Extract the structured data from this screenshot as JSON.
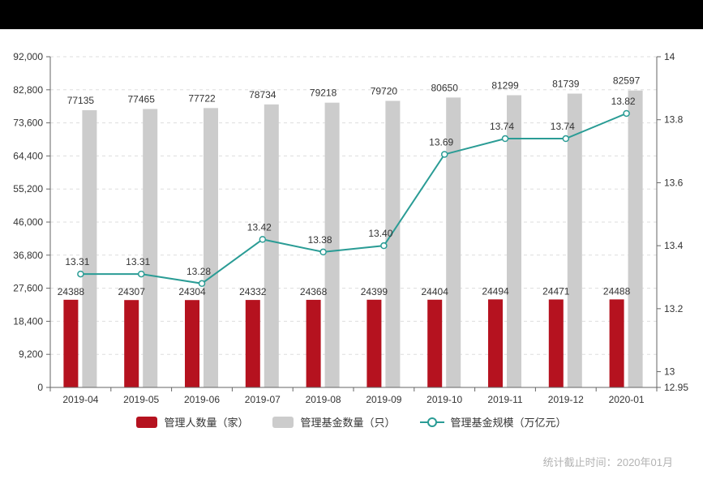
{
  "top_bar": {},
  "chart_data": {
    "type": "bar",
    "subtype": "bar-line-combo",
    "categories": [
      "2019-04",
      "2019-05",
      "2019-06",
      "2019-07",
      "2019-08",
      "2019-09",
      "2019-10",
      "2019-11",
      "2019-12",
      "2020-01"
    ],
    "series": [
      {
        "name": "管理人数量（家）",
        "type": "bar",
        "axis": "left",
        "color": "#b5121f",
        "values": [
          24388,
          24307,
          24304,
          24332,
          24368,
          24399,
          24404,
          24494,
          24471,
          24488
        ]
      },
      {
        "name": "管理基金数量（只）",
        "type": "bar",
        "axis": "left",
        "color": "#cccccc",
        "values": [
          77135,
          77465,
          77722,
          78734,
          79218,
          79720,
          80650,
          81299,
          81739,
          82597
        ]
      },
      {
        "name": "管理基金规模（万亿元）",
        "type": "line",
        "axis": "right",
        "color": "#2a9c95",
        "values": [
          13.31,
          13.31,
          13.28,
          13.42,
          13.38,
          13.4,
          13.69,
          13.74,
          13.74,
          13.82
        ],
        "label_decimals": 2,
        "marker": "open-circle"
      }
    ],
    "left_axis": {
      "min": 0,
      "max": 92000,
      "ticks": [
        0,
        9200,
        18400,
        27600,
        36800,
        46000,
        55200,
        64400,
        73600,
        82800,
        92000
      ],
      "tick_labels": [
        "0",
        "9,200",
        "18,400",
        "27,600",
        "36,800",
        "46,000",
        "55,200",
        "64,400",
        "73,600",
        "82,800",
        "92,000"
      ]
    },
    "right_axis": {
      "min": 12.95,
      "max": 14,
      "ticks": [
        12.95,
        13,
        13.2,
        13.4,
        13.6,
        13.8,
        14
      ],
      "tick_labels": [
        "12.95",
        "13",
        "13.2",
        "13.4",
        "13.6",
        "13.8",
        "14"
      ]
    },
    "grid": true,
    "gridline_style": "dashed",
    "legend_position": "bottom",
    "colors": {
      "axis_line": "#666666",
      "grid_line": "#dddddd",
      "tick_text": "#333333",
      "data_label_text": "#333333"
    }
  },
  "footer": {
    "text": "统计截止时间：2020年01月"
  }
}
